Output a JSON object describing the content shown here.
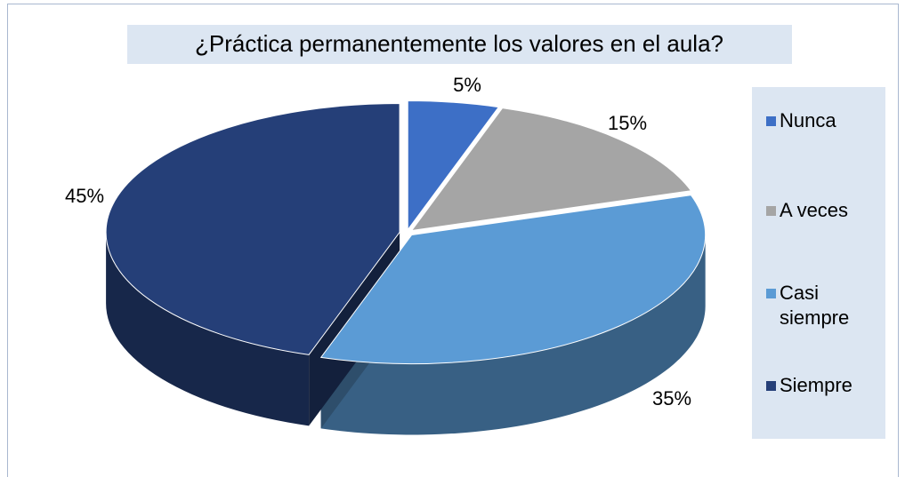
{
  "chart_data": {
    "type": "pie",
    "title": "¿Práctica permanentemente los valores en el aula?",
    "categories": [
      "Nunca",
      "A veces",
      "Casi siempre",
      "Siempre"
    ],
    "values": [
      5,
      15,
      35,
      45
    ],
    "value_labels": [
      "5%",
      "15%",
      "35%",
      "45%"
    ],
    "colors": [
      "#3d6fc6",
      "#a5a5a5",
      "#5b9bd5",
      "#253f78"
    ],
    "legend": "right"
  }
}
